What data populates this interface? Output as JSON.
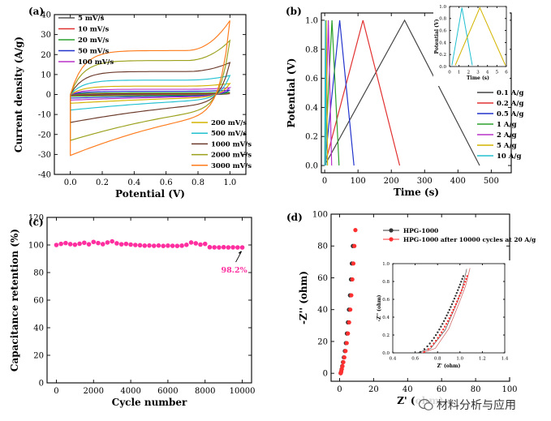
{
  "figure": {
    "watermark": "材料分析与应用"
  },
  "chart_data": [
    {
      "panel": "(a)",
      "type": "line",
      "subtype": "cyclic-voltammetry",
      "xlabel": "Potential (V)",
      "ylabel": "Current density (A/g)",
      "xlim": [
        -0.1,
        1.1
      ],
      "ylim": [
        -40,
        40
      ],
      "xticks": [
        "0.0",
        "0.2",
        "0.4",
        "0.6",
        "0.8",
        "1.0"
      ],
      "yticks": [
        "-40",
        "-30",
        "-20",
        "-10",
        "0",
        "10",
        "20",
        "30",
        "40"
      ],
      "legend_top": [
        "5 mV/s",
        "10 mV/s",
        "20 mV/s",
        "50 mV/s",
        "100 mV/s"
      ],
      "legend_bottom": [
        "200 mV/s",
        "500 mV/s",
        "1000 mV/s",
        "2000 mV/s",
        "3000 mV/s"
      ],
      "series": [
        {
          "name": "5 mV/s",
          "color": "#555555",
          "upper": 0.25,
          "lower": -0.3,
          "peak": 0.35
        },
        {
          "name": "10 mV/s",
          "color": "#e23030",
          "upper": 0.5,
          "lower": -0.55,
          "peak": 0.7
        },
        {
          "name": "20 mV/s",
          "color": "#2ca02c",
          "upper": 0.8,
          "lower": -0.9,
          "peak": 1.1
        },
        {
          "name": "50 mV/s",
          "color": "#2233cc",
          "upper": 1.6,
          "lower": -1.8,
          "peak": 2.2
        },
        {
          "name": "100 mV/s",
          "color": "#b832c9",
          "upper": 2.6,
          "lower": -2.8,
          "peak": 3.4
        },
        {
          "name": "200 mV/s",
          "color": "#d4b400",
          "upper": 4.2,
          "lower": -4.4,
          "peak": 5.5
        },
        {
          "name": "500 mV/s",
          "color": "#22c0d0",
          "upper": 7.2,
          "lower": -7.8,
          "peak": 9.5
        },
        {
          "name": "1000 mV/s",
          "color": "#6b3a2a",
          "upper": 11.5,
          "lower": -14,
          "peak": 16
        },
        {
          "name": "2000 mV/s",
          "color": "#9aa01a",
          "upper": 17,
          "lower": -23,
          "peak": 27
        },
        {
          "name": "3000 mV/s",
          "color": "#ff7a1a",
          "upper": 22,
          "lower": -30.5,
          "peak": 37
        }
      ]
    },
    {
      "panel": "(b)",
      "type": "line",
      "subtype": "galvanostatic-charge-discharge",
      "xlabel": "Time (s)",
      "ylabel": "Potential (V)",
      "xlim": [
        -10,
        560
      ],
      "ylim": [
        -0.05,
        1.05
      ],
      "xticks": [
        "0",
        "100",
        "200",
        "300",
        "400",
        "500"
      ],
      "yticks": [
        "0.0",
        "0.2",
        "0.4",
        "0.6",
        "0.8",
        "1.0"
      ],
      "legend": [
        "0.1 A/g",
        "0.2 A/g",
        "0.5 A/g",
        "1 A/g",
        "2 A/g",
        "5 A/g",
        "10 A/g"
      ],
      "series": [
        {
          "name": "0.1 A/g",
          "color": "#444444",
          "charge_end": 240,
          "discharge_end": 465
        },
        {
          "name": "0.2 A/g",
          "color": "#e23030",
          "charge_end": 115,
          "discharge_end": 225
        },
        {
          "name": "0.5 A/g",
          "color": "#2233cc",
          "charge_end": 45,
          "discharge_end": 88
        },
        {
          "name": "1 A/g",
          "color": "#2ca02c",
          "charge_end": 22,
          "discharge_end": 43
        },
        {
          "name": "2 A/g",
          "color": "#b832c9",
          "charge_end": 11,
          "discharge_end": 21
        },
        {
          "name": "5 A/g",
          "color": "#d4b400",
          "charge_end": 4.5,
          "discharge_end": 8.5
        },
        {
          "name": "10 A/g",
          "color": "#22c0d0",
          "charge_end": 2.3,
          "discharge_end": 4.3
        }
      ],
      "inset": {
        "xlabel": "Time (s)",
        "ylabel": "Potential (V)",
        "xlim": [
          0,
          6
        ],
        "ylim": [
          0,
          1.0
        ],
        "xticks": [
          "0",
          "1",
          "2",
          "3",
          "4",
          "5",
          "6"
        ],
        "yticks": [
          "0.0",
          "0.2",
          "0.4",
          "0.6",
          "0.8",
          "1.0"
        ],
        "series": [
          {
            "name": "10 A/g",
            "color": "#22c0d0",
            "start": 0.25,
            "charge_end": 1.3,
            "discharge_end": 2.4
          },
          {
            "name": "5 A/g",
            "color": "#d4b400",
            "start": 0.6,
            "charge_end": 3.2,
            "discharge_end": 5.9
          }
        ]
      }
    },
    {
      "panel": "(c)",
      "type": "scatter",
      "subtype": "cycling-stability",
      "xlabel": "Cycle number",
      "ylabel": "Capacitance retention (%)",
      "xlim": [
        -500,
        10500
      ],
      "ylim": [
        0,
        120
      ],
      "xticks": [
        "0",
        "2000",
        "4000",
        "6000",
        "8000",
        "10000"
      ],
      "yticks": [
        "0",
        "20",
        "40",
        "60",
        "80",
        "100",
        "120"
      ],
      "color": "#ff2fa0",
      "annotation": "98.2%",
      "x": [
        0,
        250,
        500,
        750,
        1000,
        1250,
        1500,
        1750,
        2000,
        2250,
        2500,
        2750,
        3000,
        3250,
        3500,
        3750,
        4000,
        4250,
        4500,
        4750,
        5000,
        5250,
        5500,
        5750,
        6000,
        6250,
        6500,
        6750,
        7000,
        7250,
        7500,
        7750,
        8000,
        8250,
        8500,
        8750,
        9000,
        9250,
        9500,
        9750,
        10000
      ],
      "y": [
        100,
        100.8,
        101.4,
        100.6,
        100.2,
        100.9,
        101.6,
        100.5,
        102.2,
        101.4,
        100.6,
        101.8,
        102.6,
        101.2,
        100.5,
        100.8,
        100.3,
        100,
        99.8,
        99.5,
        99.6,
        99.4,
        99.6,
        99.3,
        99.5,
        99.4,
        99.3,
        99.5,
        100.1,
        101.8,
        101.2,
        100.3,
        100.8,
        98.4,
        98.3,
        98.2,
        98.4,
        98.2,
        98.3,
        98.2,
        98.2
      ]
    },
    {
      "panel": "(d)",
      "type": "scatter",
      "subtype": "nyquist-plot",
      "xlabel": "Z' (ohm)",
      "ylabel": "-Z'' (ohm)",
      "xlim": [
        -5,
        100
      ],
      "ylim": [
        -5,
        100
      ],
      "xticks": [
        "0",
        "20",
        "40",
        "60",
        "80",
        "100"
      ],
      "yticks": [
        "0",
        "20",
        "40",
        "60",
        "80",
        "100"
      ],
      "legend": [
        "HPG-1000",
        "HPG-1000 after 10000 cycles at 20 A/g"
      ],
      "series": [
        {
          "name": "HPG-1000",
          "color": "#333333",
          "x": [
            0.62,
            0.75,
            0.95,
            1.2,
            1.55,
            2.0,
            2.5,
            3.1,
            3.7,
            4.3,
            4.9,
            5.5,
            6.1,
            6.7,
            7.2,
            7.8
          ],
          "y": [
            0.05,
            0.4,
            1.2,
            2.6,
            4.5,
            7.0,
            10,
            14,
            19,
            25,
            32,
            40,
            49,
            59,
            69,
            80
          ]
        },
        {
          "name": "HPG-1000 after 10000 cycles at 20 A/g",
          "color": "#ff3030",
          "x": [
            0.66,
            0.8,
            1.0,
            1.3,
            1.7,
            2.2,
            2.8,
            3.5,
            4.2,
            4.9,
            5.6,
            6.3,
            6.9,
            7.5,
            8.1,
            8.7,
            9.3
          ],
          "y": [
            0.05,
            0.4,
            1.2,
            2.6,
            4.5,
            7.0,
            10,
            14,
            19,
            25,
            32,
            40,
            49,
            59,
            69,
            80,
            90
          ]
        }
      ],
      "inset": {
        "xlabel": "Z' (ohm)",
        "ylabel": "-Z'' (ohm)",
        "xlim": [
          0.4,
          1.4
        ],
        "ylim": [
          0,
          1.0
        ],
        "xticks": [
          "0.4",
          "0.6",
          "0.8",
          "1.0",
          "1.2",
          "1.4"
        ],
        "yticks": [
          "0.0",
          "0.2",
          "0.4",
          "0.6",
          "0.8",
          "1.0"
        ]
      }
    }
  ]
}
